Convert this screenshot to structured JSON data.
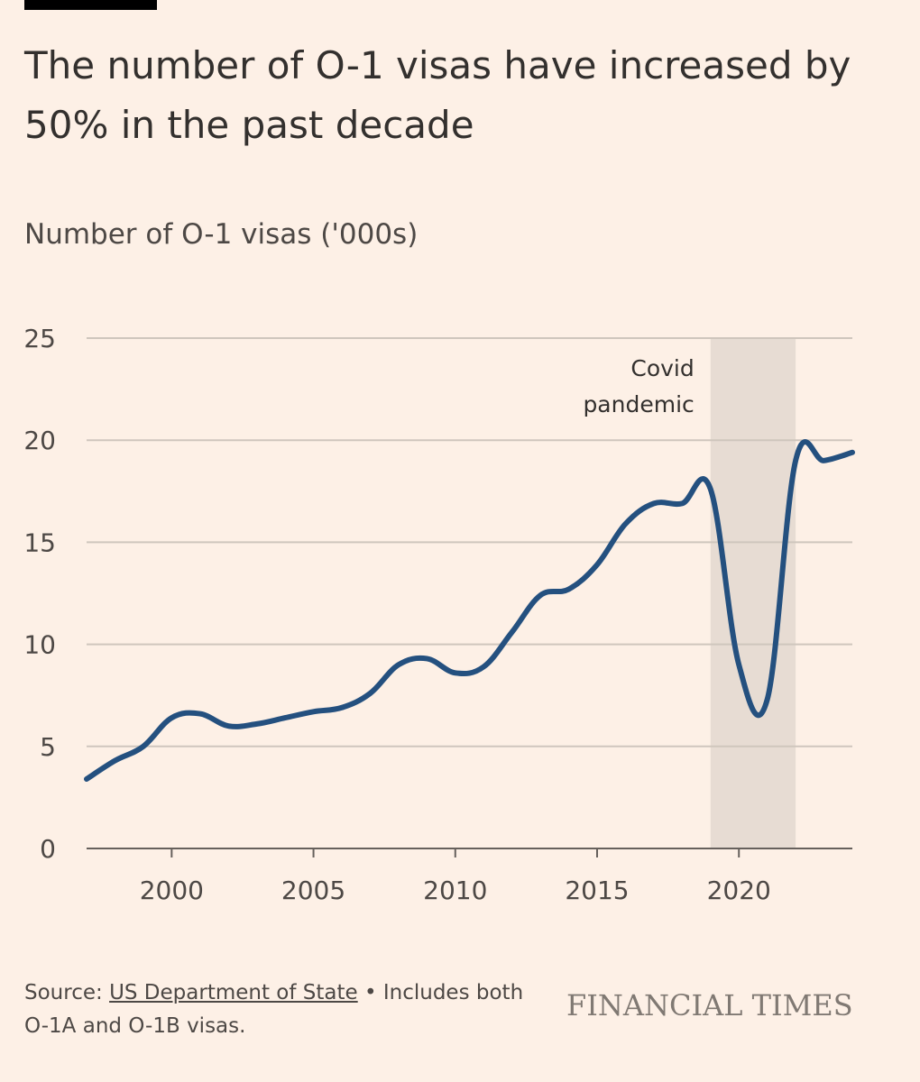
{
  "header": {
    "title": "The number of O-1 visas have increased by 50% in the past decade",
    "subtitle": "Number of O-1 visas ('000s)"
  },
  "footer": {
    "source_prefix": "Source: ",
    "source_link": "US Department of State",
    "note": " • Includes both O-1A and O-1B visas.",
    "brand": "FINANCIAL TIMES"
  },
  "colors": {
    "background": "#fdf0e6",
    "line": "#24507f",
    "gridline": "#cfc6bd",
    "shade": "#e7dcd3",
    "axis": "#66605c"
  },
  "chart_data": {
    "type": "line",
    "title": "The number of O-1 visas have increased by 50% in the past decade",
    "ylabel": "Number of O-1 visas ('000s)",
    "xlabel": "",
    "xlim": [
      1997,
      2024
    ],
    "ylim": [
      0,
      25
    ],
    "y_ticks": [
      0,
      5,
      10,
      15,
      20,
      25
    ],
    "x_ticks": [
      2000,
      2005,
      2010,
      2015,
      2020
    ],
    "grid": true,
    "series": [
      {
        "name": "O-1 visas",
        "x": [
          1997,
          1998,
          1999,
          2000,
          2001,
          2002,
          2003,
          2004,
          2005,
          2006,
          2007,
          2008,
          2009,
          2010,
          2011,
          2012,
          2013,
          2014,
          2015,
          2016,
          2017,
          2018,
          2019,
          2020,
          2021,
          2022,
          2023,
          2024
        ],
        "values": [
          3.4,
          4.3,
          5.0,
          6.4,
          6.6,
          6.0,
          6.1,
          6.4,
          6.7,
          6.9,
          7.6,
          9.0,
          9.3,
          8.6,
          8.9,
          10.6,
          12.4,
          12.7,
          13.9,
          15.9,
          16.9,
          16.9,
          17.6,
          9.0,
          7.3,
          19.0,
          19.0,
          19.4
        ]
      }
    ],
    "annotations": [
      {
        "type": "shaded-range",
        "x_start": 2019,
        "x_end": 2022,
        "label_line1": "Covid",
        "label_line2": "pandemic"
      }
    ]
  }
}
